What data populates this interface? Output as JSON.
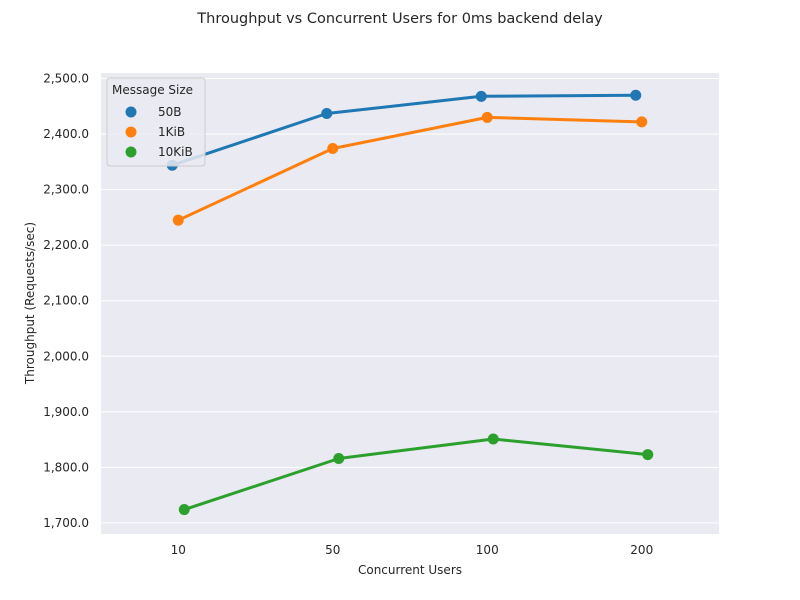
{
  "chart_data": {
    "type": "line",
    "title": "Throughput vs Concurrent Users for 0ms backend delay",
    "xlabel": "Concurrent Users",
    "ylabel": "Throughput (Requests/sec)",
    "categories": [
      "10",
      "50",
      "100",
      "200"
    ],
    "ylim": [
      1680,
      2510
    ],
    "yticks": [
      1700,
      1800,
      1900,
      2000,
      2100,
      2200,
      2300,
      2400,
      2500
    ],
    "ytick_labels": [
      "1,700.0",
      "1,800.0",
      "1,900.0",
      "2,000.0",
      "2,100.0",
      "2,200.0",
      "2,300.0",
      "2,400.0",
      "2,500.0"
    ],
    "grid": true,
    "legend": {
      "title": "Message Size",
      "placement": "top-left"
    },
    "series": [
      {
        "name": "50B",
        "color": "#1f77b4",
        "values": [
          2344,
          2437,
          2468,
          2470
        ]
      },
      {
        "name": "1KiB",
        "color": "#ff7f0e",
        "values": [
          2245,
          2374,
          2430,
          2422
        ]
      },
      {
        "name": "10KiB",
        "color": "#2ca02c",
        "values": [
          1724,
          1816,
          1851,
          1823
        ]
      }
    ]
  }
}
